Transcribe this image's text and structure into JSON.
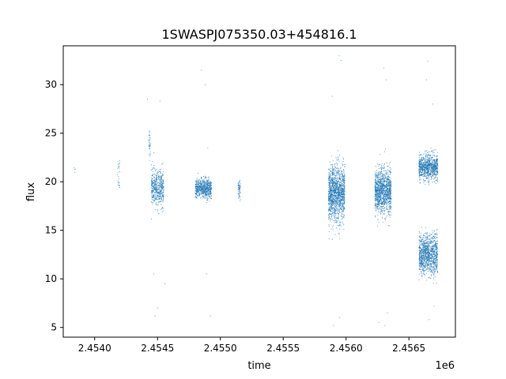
{
  "chart_data": {
    "type": "scatter",
    "title": "1SWASPJ075350.03+454816.1",
    "xlabel": "time",
    "ylabel": "flux",
    "x_offset_label": "1e6",
    "xlim": [
      2453750,
      2456870
    ],
    "ylim": [
      4.0,
      34.0
    ],
    "x_ticks": [
      2.454,
      2.4545,
      2.455,
      2.4555,
      2.456,
      2.4565
    ],
    "x_tick_labels": [
      "2.4540",
      "2.4545",
      "2.4550",
      "2.4555",
      "2.4560",
      "2.4565"
    ],
    "y_ticks": [
      5,
      10,
      15,
      20,
      25,
      30
    ],
    "y_tick_labels": [
      "5",
      "10",
      "15",
      "20",
      "25",
      "30"
    ],
    "grid": false,
    "marker_color": "#1f77b4",
    "series": [
      {
        "clusters": [
          {
            "x": [
              2453835,
              2453845
            ],
            "y_center": 21.5,
            "y_spread": 1.0,
            "n": 4
          },
          {
            "x": [
              2454180,
              2454200
            ],
            "y_center": 21.0,
            "y_spread": 1.8,
            "n": 25
          },
          {
            "x": [
              2454430,
              2454445
            ],
            "y_center": 24.0,
            "y_spread": 1.5,
            "n": 35
          },
          {
            "x": [
              2454450,
              2454550
            ],
            "y_center": 19.3,
            "y_spread": 1.8,
            "n": 500
          },
          {
            "x": [
              2454800,
              2454930
            ],
            "y_center": 19.3,
            "y_spread": 1.0,
            "n": 650
          },
          {
            "x": [
              2455140,
              2455160
            ],
            "y_center": 19.2,
            "y_spread": 0.9,
            "n": 60
          },
          {
            "x": [
              2455860,
              2455990
            ],
            "y_center": 18.8,
            "y_spread": 2.8,
            "n": 1400
          },
          {
            "x": [
              2456230,
              2456360
            ],
            "y_center": 19.0,
            "y_spread": 2.3,
            "n": 1200
          },
          {
            "x": [
              2456580,
              2456730
            ],
            "y_center": 21.5,
            "y_spread": 1.3,
            "n": 900
          },
          {
            "x": [
              2456580,
              2456730
            ],
            "y_center": 12.5,
            "y_spread": 2.0,
            "n": 1100
          }
        ],
        "outliers": [
          [
            2454420,
            28.5
          ],
          [
            2454520,
            28.3
          ],
          [
            2454470,
            23.0
          ],
          [
            2454470,
            10.5
          ],
          [
            2454480,
            6.2
          ],
          [
            2454500,
            7.0
          ],
          [
            2454560,
            9.5
          ],
          [
            2454850,
            31.5
          ],
          [
            2454880,
            30.0
          ],
          [
            2454920,
            6.2
          ],
          [
            2454890,
            10.5
          ],
          [
            2454900,
            23.5
          ],
          [
            2455890,
            28.8
          ],
          [
            2455945,
            33.0
          ],
          [
            2455960,
            32.5
          ],
          [
            2455900,
            5.2
          ],
          [
            2455950,
            6.0
          ],
          [
            2456300,
            31.7
          ],
          [
            2456320,
            30.5
          ],
          [
            2456260,
            5.5
          ],
          [
            2456310,
            5.2
          ],
          [
            2456330,
            6.5
          ],
          [
            2456650,
            32.4
          ],
          [
            2456640,
            30.5
          ],
          [
            2456690,
            28.0
          ],
          [
            2456660,
            5.8
          ],
          [
            2456700,
            7.2
          ]
        ]
      }
    ]
  }
}
